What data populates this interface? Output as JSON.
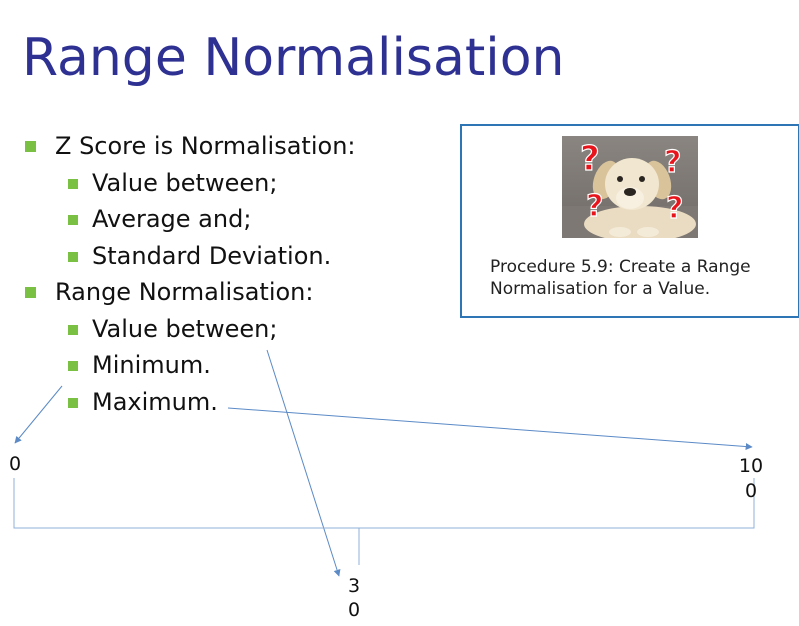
{
  "title": "Range Normalisation",
  "bullets": [
    {
      "level": 1,
      "text": "Z Score is Normalisation:"
    },
    {
      "level": 2,
      "text": "Value between;"
    },
    {
      "level": 2,
      "text": "Average and;"
    },
    {
      "level": 2,
      "text": "Standard Deviation."
    },
    {
      "level": 1,
      "text": "Range Normalisation:"
    },
    {
      "level": 2,
      "text": "Value between;"
    },
    {
      "level": 2,
      "text": "Minimum."
    },
    {
      "level": 2,
      "text": "Maximum."
    }
  ],
  "callout": {
    "text": "Procedure 5.9: Create a Range Normalisation for a Value.",
    "image": "puzzled-dog-with-question-marks",
    "question_mark_color": "#e8141b"
  },
  "scale": {
    "min_label_lines": [
      "0"
    ],
    "max_label_lines": [
      "10",
      "0"
    ],
    "value_label_lines": [
      "3",
      "0"
    ],
    "line_color": "#5b8ac6"
  },
  "colors": {
    "title": "#2e3192",
    "bullet_marker": "#7ac143",
    "callout_border": "#2e75b6"
  }
}
